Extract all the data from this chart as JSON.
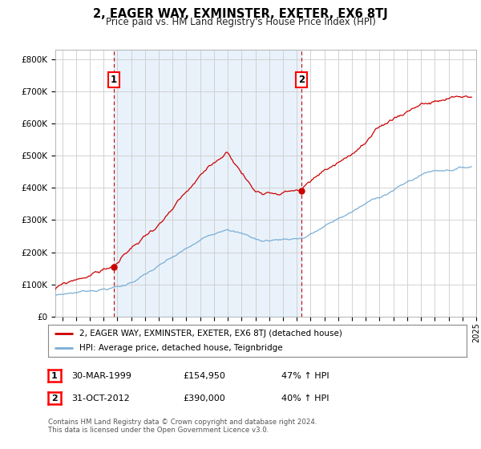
{
  "title": "2, EAGER WAY, EXMINSTER, EXETER, EX6 8TJ",
  "subtitle": "Price paid vs. HM Land Registry's House Price Index (HPI)",
  "sale1_date": "1999-03-30",
  "sale1_price": 154950,
  "sale2_date": "2012-10-31",
  "sale2_price": 390000,
  "legend_line1": "2, EAGER WAY, EXMINSTER, EXETER, EX6 8TJ (detached house)",
  "legend_line2": "HPI: Average price, detached house, Teignbridge",
  "footer": "Contains HM Land Registry data © Crown copyright and database right 2024.\nThis data is licensed under the Open Government Licence v3.0.",
  "red_color": "#cc0000",
  "blue_color": "#7aaed6",
  "shade_color": "#ddeeff",
  "dashed_color": "#cc0000",
  "background_color": "#ffffff",
  "grid_color": "#cccccc",
  "ylim": [
    0,
    830000
  ],
  "yticks": [
    0,
    100000,
    200000,
    300000,
    400000,
    500000,
    600000,
    700000,
    800000
  ],
  "ytick_labels": [
    "£0",
    "£100K",
    "£200K",
    "£300K",
    "£400K",
    "£500K",
    "£600K",
    "£700K",
    "£800K"
  ]
}
